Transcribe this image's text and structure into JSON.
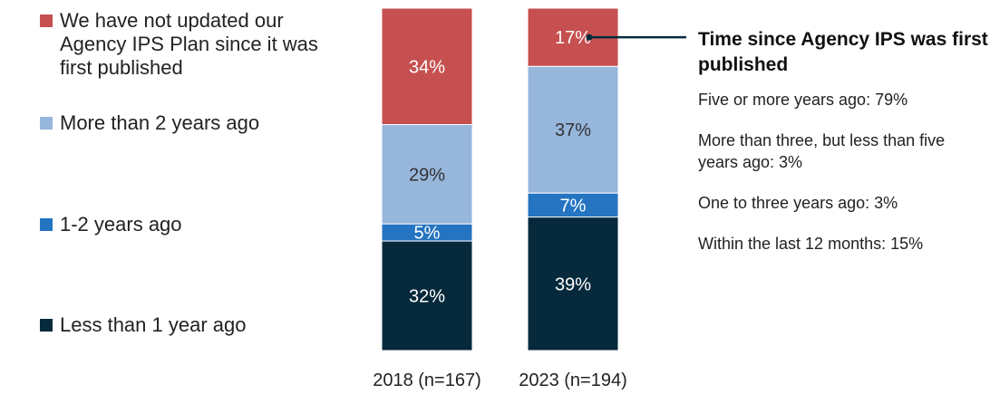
{
  "chart_data": {
    "type": "bar",
    "stacked": true,
    "categories": [
      "2018 (n=167)",
      "2023 (n=194)"
    ],
    "series": [
      {
        "name": "Less than 1 year ago",
        "values": [
          32,
          39
        ],
        "labels": [
          "32%",
          "39%"
        ],
        "color": "#062a3b",
        "label_color": "#ffffff"
      },
      {
        "name": "1-2 years ago",
        "values": [
          5,
          7
        ],
        "labels": [
          "5%",
          "7%"
        ],
        "color": "#2474c2",
        "label_color": "#ffffff"
      },
      {
        "name": "More than 2 years ago",
        "values": [
          29,
          37
        ],
        "labels": [
          "29%",
          "37%"
        ],
        "color": "#97b6dc",
        "label_color": "#333333"
      },
      {
        "name": "We have not updated our Agency IPS Plan since it was first published",
        "values": [
          34,
          17
        ],
        "labels": [
          "34%",
          "17%"
        ],
        "color": "#c65050",
        "label_color": "#ffffff"
      }
    ],
    "ylim": [
      0,
      100
    ],
    "legend_position": "left",
    "grid": false
  },
  "legend": {
    "items": [
      {
        "label": "We have not updated our Agency IPS Plan since it was first published",
        "color": "#c65050"
      },
      {
        "label": "More than 2 years ago",
        "color": "#97b6dc"
      },
      {
        "label": "1-2 years ago",
        "color": "#2474c2"
      },
      {
        "label": "Less than 1 year ago",
        "color": "#062a3b"
      }
    ]
  },
  "annotation": {
    "title": "Time since Agency IPS was first published",
    "lines": [
      "Five or more years ago: 79%",
      "More than three, but less than five years ago: 3%",
      "One to three years ago: 3%",
      "Within the last 12 months: 15%"
    ],
    "connector_color": "#062a3b"
  }
}
